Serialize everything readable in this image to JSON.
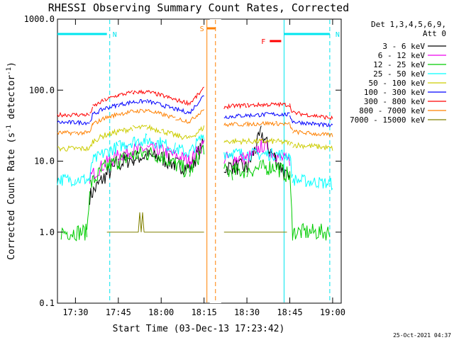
{
  "chart_data": {
    "type": "line",
    "title": "RHESSI Observing Summary Count Rates, Corrected",
    "xlabel": "Start Time (03-Dec-13 17:23:42)",
    "ylabel": "Corrected Count Rate (s",
    "ylabel_sup1": "-1",
    "ylabel_mid": " detector",
    "ylabel_sup2": "-1",
    "ylabel_end": ")",
    "yscale": "log",
    "xlim": [
      "17:23:42",
      "19:03"
    ],
    "ylim": [
      0.1,
      1000
    ],
    "x_ticks": [
      "17:30",
      "17:45",
      "18:00",
      "18:15",
      "18:30",
      "18:45",
      "19:00"
    ],
    "y_ticks": [
      "0.1",
      "1.0",
      "10.0",
      "100.0",
      "1000.0"
    ],
    "timestamp": "25-Oct-2021 04:37",
    "legend": {
      "placement": "top-right",
      "header_line1": "Det 1,3,4,5,6,9,",
      "header_line2": "Att 0"
    },
    "markers": [
      {
        "label": "N",
        "color": "#00e5ee",
        "t_start": "17:23:42",
        "t_end": "17:41"
      },
      {
        "label": "N",
        "color": "#00e5ee",
        "t_start": "18:43",
        "t_end": "18:59"
      },
      {
        "label": "S",
        "color": "#ff8000",
        "t_start": "18:16",
        "t_end": "18:19"
      },
      {
        "label": "F",
        "color": "#ff0000",
        "t_start": "18:38",
        "t_end": "18:42"
      }
    ],
    "vlines": [
      {
        "t": "17:42",
        "color": "#00e5ee",
        "style": "dashed"
      },
      {
        "t": "18:43",
        "color": "#00e5ee",
        "style": "solid"
      },
      {
        "t": "18:59",
        "color": "#00e5ee",
        "style": "dashed"
      },
      {
        "t": "18:16",
        "color": "#ff8000",
        "style": "solid"
      },
      {
        "t": "18:19",
        "color": "#ff8000",
        "style": "dashed"
      }
    ],
    "gaps": [
      [
        "18:17",
        "18:21"
      ]
    ],
    "series": [
      {
        "name": "3 - 6 keV",
        "color": "#000000",
        "x": [
          "17:35",
          "17:40",
          "17:45",
          "17:50",
          "17:55",
          "18:00",
          "18:05",
          "18:10",
          "18:15",
          "18:22",
          "18:25",
          "18:30",
          "18:33",
          "18:35",
          "18:38",
          "18:40",
          "18:42",
          "18:45"
        ],
        "y": [
          3.2,
          6.0,
          9.0,
          11.0,
          12.0,
          11.0,
          9.0,
          8.0,
          18.0,
          8.0,
          8.5,
          8.0,
          15.0,
          25.0,
          14.0,
          11.0,
          8.0,
          5.0
        ]
      },
      {
        "name": "6 - 12 keV",
        "color": "#ee00ee",
        "x": [
          "17:35",
          "17:40",
          "17:45",
          "17:50",
          "17:55",
          "18:00",
          "18:05",
          "18:10",
          "18:15",
          "18:22",
          "18:25",
          "18:30",
          "18:33",
          "18:35",
          "18:38",
          "18:40",
          "18:42",
          "18:45"
        ],
        "y": [
          6.0,
          9.0,
          12.0,
          14.0,
          15.0,
          14.0,
          12.0,
          10.0,
          18.0,
          11.0,
          11.0,
          11.0,
          13.0,
          17.0,
          14.0,
          12.0,
          11.0,
          10.0
        ]
      },
      {
        "name": "12 - 25 keV",
        "color": "#00cc00",
        "x": [
          "17:25",
          "17:34",
          "17:35",
          "17:40",
          "17:45",
          "17:50",
          "17:55",
          "18:00",
          "18:05",
          "18:10",
          "18:15",
          "18:22",
          "18:25",
          "18:30",
          "18:35",
          "18:40",
          "18:45",
          "18:46",
          "18:59"
        ],
        "y": [
          1.0,
          1.0,
          4.5,
          8.0,
          10.0,
          12.0,
          13.0,
          12.0,
          9.0,
          7.0,
          16.0,
          7.0,
          7.0,
          7.5,
          8.0,
          8.5,
          6.0,
          1.0,
          1.0
        ]
      },
      {
        "name": "25 - 50 keV",
        "color": "#00ffff",
        "x": [
          "17:23:42",
          "17:30",
          "17:35",
          "17:36",
          "17:40",
          "17:45",
          "17:50",
          "17:55",
          "18:00",
          "18:05",
          "18:10",
          "18:15",
          "18:22",
          "18:25",
          "18:30",
          "18:35",
          "18:40",
          "18:45",
          "18:46",
          "18:55",
          "19:00"
        ],
        "y": [
          5.5,
          5.5,
          5.5,
          10.0,
          13.0,
          16.0,
          19.0,
          20.0,
          18.0,
          15.0,
          13.0,
          24.0,
          13.0,
          13.0,
          12.5,
          12.5,
          12.5,
          12.0,
          5.5,
          5.0,
          4.8
        ]
      },
      {
        "name": "50 - 100 keV",
        "color": "#cccc00",
        "x": [
          "17:23:42",
          "17:30",
          "17:35",
          "17:36",
          "17:40",
          "17:45",
          "17:50",
          "17:55",
          "18:00",
          "18:05",
          "18:10",
          "18:15",
          "18:22",
          "18:25",
          "18:30",
          "18:35",
          "18:40",
          "18:45",
          "18:46",
          "18:55",
          "19:00"
        ],
        "y": [
          15.0,
          15.0,
          15.0,
          19.0,
          23.0,
          26.0,
          29.0,
          30.0,
          27.0,
          23.0,
          21.0,
          30.0,
          19.0,
          19.0,
          19.0,
          19.0,
          19.0,
          18.0,
          17.0,
          16.0,
          15.0
        ]
      },
      {
        "name": "100 - 300 keV",
        "color": "#0000ff",
        "x": [
          "17:23:42",
          "17:30",
          "17:35",
          "17:36",
          "17:40",
          "17:45",
          "17:50",
          "17:55",
          "18:00",
          "18:05",
          "18:10",
          "18:15",
          "18:22",
          "18:25",
          "18:30",
          "18:35",
          "18:40",
          "18:45",
          "18:46",
          "18:55",
          "19:00"
        ],
        "y": [
          35.0,
          35.0,
          35.0,
          45.0,
          55.0,
          62.0,
          68.0,
          70.0,
          62.0,
          54.0,
          48.0,
          85.0,
          42.0,
          43.0,
          44.0,
          45.0,
          46.0,
          45.0,
          36.0,
          33.0,
          31.0
        ]
      },
      {
        "name": "300 - 800 keV",
        "color": "#ff0000",
        "x": [
          "17:23:42",
          "17:30",
          "17:35",
          "17:36",
          "17:40",
          "17:45",
          "17:50",
          "17:55",
          "18:00",
          "18:05",
          "18:10",
          "18:15",
          "18:22",
          "18:25",
          "18:30",
          "18:35",
          "18:40",
          "18:45",
          "18:46",
          "18:55",
          "19:00"
        ],
        "y": [
          45.0,
          45.0,
          45.0,
          58.0,
          72.0,
          85.0,
          93.0,
          95.0,
          85.0,
          73.0,
          65.0,
          105.0,
          58.0,
          60.0,
          61.0,
          62.0,
          63.0,
          62.0,
          48.0,
          43.0,
          40.0
        ]
      },
      {
        "name": "800 - 7000 keV",
        "color": "#ff8000",
        "x": [
          "17:23:42",
          "17:30",
          "17:35",
          "17:36",
          "17:40",
          "17:45",
          "17:50",
          "17:55",
          "18:00",
          "18:05",
          "18:10",
          "18:15",
          "18:22",
          "18:25",
          "18:30",
          "18:35",
          "18:40",
          "18:45",
          "18:46",
          "18:55",
          "19:00"
        ],
        "y": [
          25.0,
          25.0,
          25.0,
          33.0,
          40.0,
          46.0,
          50.0,
          52.0,
          46.0,
          40.0,
          36.0,
          55.0,
          32.0,
          33.0,
          33.0,
          34.0,
          34.0,
          33.0,
          26.0,
          24.0,
          23.0
        ]
      },
      {
        "name": "7000 - 15000 keV",
        "color": "#808000",
        "x": [
          "17:41",
          "17:52",
          "17:52:30",
          "17:53",
          "17:53:30",
          "17:54",
          "18:05",
          "18:15",
          "18:22",
          "18:33",
          "18:34",
          "18:35",
          "18:44"
        ],
        "y": [
          1.0,
          1.0,
          1.9,
          1.0,
          1.9,
          1.0,
          1.0,
          1.0,
          1.0,
          1.0,
          1.0,
          1.0,
          1.0
        ]
      }
    ]
  }
}
